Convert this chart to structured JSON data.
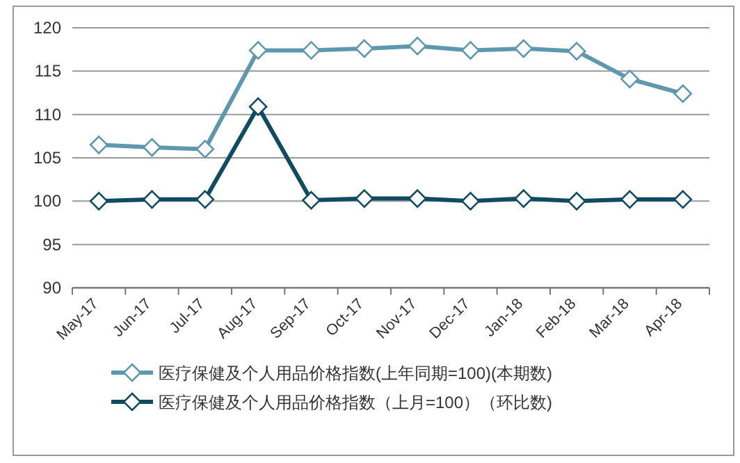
{
  "chart_data": {
    "type": "line",
    "categories": [
      "May-17",
      "Jun-17",
      "Jul-17",
      "Aug-17",
      "Sep-17",
      "Oct-17",
      "Nov-17",
      "Dec-17",
      "Jan-18",
      "Feb-18",
      "Mar-18",
      "Apr-18"
    ],
    "series": [
      {
        "name": "医疗保健及个人用品价格指数(上年同期=100)(本期数)",
        "color": "#5e98ae",
        "values": [
          106.5,
          106.2,
          106.0,
          117.4,
          117.4,
          117.6,
          117.9,
          117.4,
          117.6,
          117.3,
          114.1,
          112.4
        ]
      },
      {
        "name": "医疗保健及个人用品价格指数（上月=100）（环比数)",
        "color": "#0f4c63",
        "values": [
          100.0,
          100.2,
          100.2,
          110.9,
          100.1,
          100.3,
          100.3,
          100.0,
          100.3,
          100.0,
          100.2,
          100.2
        ]
      }
    ],
    "ylim": [
      90,
      120
    ],
    "yticks": [
      90,
      95,
      100,
      105,
      110,
      115,
      120
    ],
    "grid": "y",
    "legend": "bottom",
    "marker": "diamond",
    "line_style": "solid"
  }
}
